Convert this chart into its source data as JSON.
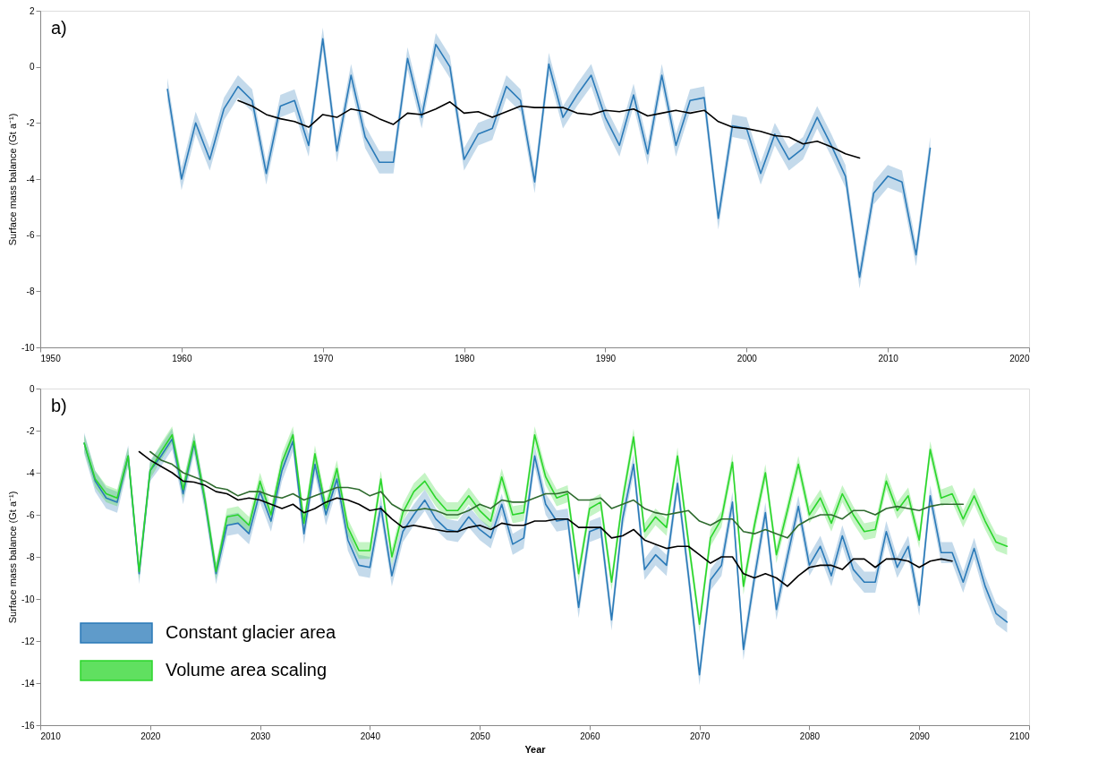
{
  "chart_data": [
    {
      "type": "line",
      "ylabel": "Surface mass balance (Gt a⁻¹)",
      "annotations": [
        "a)"
      ],
      "xlim": [
        1950,
        2020
      ],
      "xticks": [
        1950,
        1960,
        1970,
        1980,
        1990,
        2000,
        2010,
        2020
      ],
      "ylim": [
        -10,
        2
      ],
      "yticks": [
        -10,
        -8,
        -6,
        -4,
        -2,
        0,
        2
      ],
      "grid": false,
      "legend": false,
      "line_style": "solid",
      "series": [
        {
          "color": "#2a7ab8",
          "x": [
            1959,
            1960,
            1961,
            1962,
            1963,
            1964,
            1965,
            1966,
            1967,
            1968,
            1969,
            1970,
            1971,
            1972,
            1973,
            1974,
            1975,
            1976,
            1977,
            1978,
            1979,
            1980,
            1981,
            1982,
            1983,
            1984,
            1985,
            1986,
            1987,
            1988,
            1989,
            1990,
            1991,
            1992,
            1993,
            1994,
            1995,
            1996,
            1997,
            1998,
            1999,
            2000,
            2001,
            2002,
            2003,
            2004,
            2005,
            2006,
            2007,
            2008,
            2009,
            2010,
            2011,
            2012,
            2013
          ],
          "values": [
            -0.8,
            -4.0,
            -2.0,
            -3.3,
            -1.5,
            -0.7,
            -1.2,
            -3.8,
            -1.4,
            -1.2,
            -2.8,
            1.0,
            -3.0,
            -0.3,
            -2.5,
            -3.4,
            -3.4,
            0.3,
            -1.8,
            0.8,
            0.0,
            -3.3,
            -2.4,
            -2.2,
            -0.7,
            -1.2,
            -4.1,
            0.1,
            -1.8,
            -1.0,
            -0.3,
            -1.8,
            -2.8,
            -1.0,
            -3.1,
            -0.3,
            -2.8,
            -1.2,
            -1.1,
            -5.4,
            -2.1,
            -2.2,
            -3.8,
            -2.4,
            -3.3,
            -2.9,
            -1.8,
            -2.8,
            -3.9,
            -7.5,
            -4.5,
            -3.9,
            -4.1,
            -6.7,
            -2.9
          ],
          "lower": [
            -1.2,
            -4.4,
            -2.4,
            -3.7,
            -1.9,
            -1.1,
            -1.6,
            -4.2,
            -1.8,
            -1.6,
            -3.2,
            0.6,
            -3.4,
            -0.7,
            -2.9,
            -3.8,
            -3.8,
            -0.1,
            -2.2,
            0.4,
            -0.4,
            -3.7,
            -2.8,
            -2.6,
            -1.1,
            -1.6,
            -4.5,
            -0.3,
            -2.2,
            -1.4,
            -0.7,
            -2.2,
            -3.2,
            -1.4,
            -3.5,
            -0.7,
            -3.2,
            -1.6,
            -1.5,
            -5.8,
            -2.5,
            -2.6,
            -4.2,
            -2.8,
            -3.7,
            -3.3,
            -2.2,
            -3.2,
            -4.3,
            -7.9,
            -4.9,
            -4.3,
            -4.5,
            -7.1,
            -3.3
          ],
          "upper": [
            -0.4,
            -3.6,
            -1.6,
            -2.9,
            -1.1,
            -0.3,
            -0.8,
            -3.4,
            -1.0,
            -0.8,
            -2.4,
            1.4,
            -2.6,
            0.1,
            -2.1,
            -3.0,
            -3.0,
            0.7,
            -1.4,
            1.2,
            0.4,
            -2.9,
            -2.0,
            -1.8,
            -0.3,
            -0.8,
            -3.7,
            0.5,
            -1.4,
            -0.6,
            0.1,
            -1.4,
            -2.4,
            -0.6,
            -2.7,
            0.1,
            -2.4,
            -0.8,
            -0.7,
            -5.0,
            -1.7,
            -1.8,
            -3.4,
            -2.0,
            -2.9,
            -2.5,
            -1.4,
            -2.4,
            -3.5,
            -7.1,
            -4.1,
            -3.5,
            -3.7,
            -6.3,
            -2.5
          ]
        },
        {
          "color": "#000000",
          "x": [
            1964,
            1965,
            1966,
            1967,
            1968,
            1969,
            1970,
            1971,
            1972,
            1973,
            1974,
            1975,
            1976,
            1977,
            1978,
            1979,
            1980,
            1981,
            1982,
            1983,
            1984,
            1985,
            1986,
            1987,
            1988,
            1989,
            1990,
            1991,
            1992,
            1993,
            1994,
            1995,
            1996,
            1997,
            1998,
            1999,
            2000,
            2001,
            2002,
            2003,
            2004,
            2005,
            2006,
            2007,
            2008
          ],
          "values": [
            -1.2,
            -1.4,
            -1.7,
            -1.85,
            -1.95,
            -2.15,
            -1.7,
            -1.8,
            -1.5,
            -1.6,
            -1.85,
            -2.05,
            -1.65,
            -1.7,
            -1.5,
            -1.25,
            -1.65,
            -1.6,
            -1.8,
            -1.6,
            -1.4,
            -1.45,
            -1.45,
            -1.45,
            -1.65,
            -1.7,
            -1.55,
            -1.6,
            -1.5,
            -1.75,
            -1.65,
            -1.55,
            -1.65,
            -1.55,
            -1.95,
            -2.15,
            -2.2,
            -2.3,
            -2.45,
            -2.5,
            -2.75,
            -2.65,
            -2.85,
            -3.1,
            -3.25
          ]
        }
      ]
    },
    {
      "type": "line",
      "xlabel": "Year",
      "ylabel": "Surface mass balance (Gt a⁻¹)",
      "annotations": [
        "b)"
      ],
      "xlim": [
        2010,
        2100
      ],
      "xticks": [
        2010,
        2020,
        2030,
        2040,
        2050,
        2060,
        2070,
        2080,
        2090,
        2100
      ],
      "ylim": [
        -16,
        0
      ],
      "yticks": [
        -16,
        -14,
        -12,
        -10,
        -8,
        -6,
        -4,
        -2,
        0
      ],
      "grid": false,
      "legend": "bottom left",
      "line_style": "solid",
      "series": [
        {
          "name": "Constant glacier area",
          "color": "#2a7ab8",
          "x": [
            2014,
            2015,
            2016,
            2017,
            2018,
            2019,
            2020,
            2021,
            2022,
            2023,
            2024,
            2025,
            2026,
            2027,
            2028,
            2029,
            2030,
            2031,
            2032,
            2033,
            2034,
            2035,
            2036,
            2037,
            2038,
            2039,
            2040,
            2041,
            2042,
            2043,
            2044,
            2045,
            2046,
            2047,
            2048,
            2049,
            2050,
            2051,
            2052,
            2053,
            2054,
            2055,
            2056,
            2057,
            2058,
            2059,
            2060,
            2061,
            2062,
            2063,
            2064,
            2065,
            2066,
            2067,
            2068,
            2069,
            2070,
            2071,
            2072,
            2073,
            2074,
            2075,
            2076,
            2077,
            2078,
            2079,
            2080,
            2081,
            2082,
            2083,
            2084,
            2085,
            2086,
            2087,
            2088,
            2089,
            2090,
            2091,
            2092,
            2093,
            2094,
            2095,
            2096,
            2097,
            2098
          ],
          "values": [
            -2.6,
            -4.4,
            -5.2,
            -5.4,
            -3.2,
            -8.8,
            -3.9,
            -3.2,
            -2.4,
            -5.0,
            -2.6,
            -5.4,
            -8.8,
            -6.5,
            -6.4,
            -6.9,
            -4.9,
            -6.3,
            -3.9,
            -2.5,
            -6.9,
            -3.6,
            -6.0,
            -4.3,
            -7.2,
            -8.4,
            -8.5,
            -5.6,
            -8.9,
            -6.8,
            -6.0,
            -5.3,
            -6.2,
            -6.7,
            -6.8,
            -6.1,
            -6.7,
            -7.1,
            -5.5,
            -7.4,
            -7.1,
            -3.2,
            -5.5,
            -6.3,
            -6.2,
            -10.4,
            -6.8,
            -6.6,
            -11.0,
            -6.2,
            -3.6,
            -8.6,
            -7.9,
            -8.4,
            -4.5,
            -8.9,
            -13.6,
            -9.1,
            -8.4,
            -5.4,
            -12.4,
            -9.0,
            -5.9,
            -10.5,
            -8.0,
            -5.6,
            -8.4,
            -7.5,
            -8.9,
            -7.0,
            -8.6,
            -9.2,
            -9.2,
            -6.8,
            -8.5,
            -7.5,
            -10.3,
            -5.1,
            -7.8,
            -7.8,
            -9.2,
            -7.6,
            -9.4,
            -10.7,
            -11.1
          ],
          "lower": [
            -3.1,
            -4.9,
            -5.7,
            -5.9,
            -3.7,
            -9.3,
            -4.4,
            -3.7,
            -2.9,
            -5.5,
            -3.1,
            -5.9,
            -9.3,
            -7.0,
            -6.9,
            -7.4,
            -5.4,
            -6.8,
            -4.4,
            -3.0,
            -7.4,
            -4.1,
            -6.5,
            -4.8,
            -7.7,
            -8.9,
            -9.0,
            -6.1,
            -9.4,
            -7.3,
            -6.5,
            -5.8,
            -6.7,
            -7.2,
            -7.3,
            -6.6,
            -7.2,
            -7.6,
            -6.0,
            -7.9,
            -7.6,
            -3.7,
            -6.0,
            -6.8,
            -6.7,
            -10.9,
            -7.3,
            -7.1,
            -11.5,
            -6.7,
            -4.1,
            -9.1,
            -8.4,
            -8.9,
            -5.0,
            -9.4,
            -14.1,
            -9.6,
            -8.9,
            -5.9,
            -12.9,
            -9.5,
            -6.4,
            -11.0,
            -8.5,
            -6.1,
            -8.9,
            -8.0,
            -9.4,
            -7.5,
            -9.1,
            -9.7,
            -9.7,
            -7.3,
            -9.0,
            -8.0,
            -10.8,
            -5.6,
            -8.3,
            -8.3,
            -9.7,
            -8.1,
            -9.9,
            -11.2,
            -11.6
          ],
          "upper": [
            -2.1,
            -3.9,
            -4.7,
            -4.9,
            -2.7,
            -8.3,
            -3.4,
            -2.7,
            -1.9,
            -4.5,
            -2.1,
            -4.9,
            -8.3,
            -6.0,
            -5.9,
            -6.4,
            -4.4,
            -5.8,
            -3.4,
            -2.0,
            -6.4,
            -3.1,
            -5.5,
            -3.8,
            -6.7,
            -7.9,
            -8.0,
            -5.1,
            -8.4,
            -6.3,
            -5.5,
            -4.8,
            -5.7,
            -6.2,
            -6.3,
            -5.6,
            -6.2,
            -6.6,
            -5.0,
            -6.9,
            -6.6,
            -2.7,
            -5.0,
            -5.8,
            -5.7,
            -9.9,
            -6.3,
            -6.1,
            -10.5,
            -5.7,
            -3.1,
            -8.1,
            -7.4,
            -7.9,
            -4.0,
            -8.4,
            -13.1,
            -8.6,
            -7.9,
            -4.9,
            -11.9,
            -8.5,
            -5.4,
            -10.0,
            -7.5,
            -5.1,
            -7.9,
            -7.0,
            -8.4,
            -6.5,
            -8.1,
            -8.7,
            -8.7,
            -6.3,
            -8.0,
            -7.0,
            -9.8,
            -4.6,
            -7.3,
            -7.3,
            -8.7,
            -7.1,
            -8.9,
            -10.2,
            -10.6
          ]
        },
        {
          "name": "Volume area scaling",
          "color": "#2bd62b",
          "x": [
            2014,
            2015,
            2016,
            2017,
            2018,
            2019,
            2020,
            2021,
            2022,
            2023,
            2024,
            2025,
            2026,
            2027,
            2028,
            2029,
            2030,
            2031,
            2032,
            2033,
            2034,
            2035,
            2036,
            2037,
            2038,
            2039,
            2040,
            2041,
            2042,
            2043,
            2044,
            2045,
            2046,
            2047,
            2048,
            2049,
            2050,
            2051,
            2052,
            2053,
            2054,
            2055,
            2056,
            2057,
            2058,
            2059,
            2060,
            2061,
            2062,
            2063,
            2064,
            2065,
            2066,
            2067,
            2068,
            2069,
            2070,
            2071,
            2072,
            2073,
            2074,
            2075,
            2076,
            2077,
            2078,
            2079,
            2080,
            2081,
            2082,
            2083,
            2084,
            2085,
            2086,
            2087,
            2088,
            2089,
            2090,
            2091,
            2092,
            2093,
            2094,
            2095,
            2096,
            2097,
            2098
          ],
          "values": [
            -2.6,
            -4.3,
            -5.0,
            -5.2,
            -3.2,
            -8.7,
            -3.9,
            -3.0,
            -2.2,
            -4.8,
            -2.5,
            -5.3,
            -8.7,
            -6.1,
            -6.0,
            -6.5,
            -4.4,
            -6.0,
            -3.5,
            -2.2,
            -6.4,
            -3.1,
            -5.7,
            -3.8,
            -6.6,
            -7.7,
            -7.7,
            -4.3,
            -8.0,
            -5.9,
            -4.9,
            -4.4,
            -5.2,
            -5.8,
            -5.8,
            -5.1,
            -5.8,
            -6.3,
            -4.2,
            -6.0,
            -5.9,
            -2.2,
            -4.2,
            -5.2,
            -5.0,
            -8.8,
            -5.7,
            -5.4,
            -9.2,
            -5.3,
            -2.3,
            -6.8,
            -6.1,
            -6.6,
            -3.2,
            -7.3,
            -11.2,
            -7.1,
            -6.2,
            -3.5,
            -9.4,
            -6.5,
            -4.0,
            -7.9,
            -5.8,
            -3.6,
            -6.0,
            -5.2,
            -6.4,
            -5.0,
            -6.0,
            -6.8,
            -6.7,
            -4.4,
            -5.8,
            -5.1,
            -7.2,
            -2.9,
            -5.2,
            -5.0,
            -6.2,
            -5.1,
            -6.3,
            -7.3,
            -7.5
          ],
          "lower": [
            -3.0,
            -4.7,
            -5.4,
            -5.6,
            -3.6,
            -9.1,
            -4.3,
            -3.4,
            -2.6,
            -5.2,
            -2.9,
            -5.7,
            -9.1,
            -6.5,
            -6.4,
            -6.9,
            -4.8,
            -6.4,
            -3.9,
            -2.6,
            -6.8,
            -3.5,
            -6.1,
            -4.2,
            -7.0,
            -8.1,
            -8.1,
            -4.7,
            -8.4,
            -6.3,
            -5.3,
            -4.8,
            -5.6,
            -6.2,
            -6.2,
            -5.5,
            -6.2,
            -6.7,
            -4.6,
            -6.4,
            -6.3,
            -2.6,
            -4.6,
            -5.6,
            -5.4,
            -9.2,
            -6.1,
            -5.8,
            -9.6,
            -5.7,
            -2.7,
            -7.2,
            -6.5,
            -7.0,
            -3.6,
            -7.7,
            -11.6,
            -7.5,
            -6.6,
            -3.9,
            -9.8,
            -6.9,
            -4.4,
            -8.3,
            -6.2,
            -4.0,
            -6.4,
            -5.6,
            -6.8,
            -5.4,
            -6.4,
            -7.2,
            -7.1,
            -4.8,
            -6.2,
            -5.5,
            -7.6,
            -3.3,
            -5.6,
            -5.4,
            -6.6,
            -5.5,
            -6.7,
            -7.7,
            -7.9
          ],
          "upper": [
            -2.2,
            -3.9,
            -4.6,
            -4.8,
            -2.8,
            -8.3,
            -3.5,
            -2.6,
            -1.8,
            -4.4,
            -2.1,
            -4.9,
            -8.3,
            -5.7,
            -5.6,
            -6.1,
            -4.0,
            -5.6,
            -3.1,
            -1.8,
            -6.0,
            -2.7,
            -5.3,
            -3.4,
            -6.2,
            -7.3,
            -7.3,
            -3.9,
            -7.6,
            -5.5,
            -4.5,
            -4.0,
            -4.8,
            -5.4,
            -5.4,
            -4.7,
            -5.4,
            -5.9,
            -3.8,
            -5.6,
            -5.5,
            -1.8,
            -3.8,
            -4.8,
            -4.6,
            -8.4,
            -5.3,
            -5.0,
            -8.8,
            -4.9,
            -1.9,
            -6.4,
            -5.7,
            -6.2,
            -2.8,
            -6.9,
            -10.8,
            -6.7,
            -5.8,
            -3.1,
            -9.0,
            -6.1,
            -3.6,
            -7.5,
            -5.4,
            -3.2,
            -5.6,
            -4.8,
            -6.0,
            -4.6,
            -5.6,
            -6.4,
            -6.3,
            -4.0,
            -5.4,
            -4.7,
            -6.8,
            -2.5,
            -4.8,
            -4.6,
            -5.8,
            -4.7,
            -5.9,
            -6.9,
            -7.1
          ]
        },
        {
          "color": "#2f6b2f",
          "x": [
            2020,
            2021,
            2022,
            2023,
            2024,
            2025,
            2026,
            2027,
            2028,
            2029,
            2030,
            2031,
            2032,
            2033,
            2034,
            2035,
            2036,
            2037,
            2038,
            2039,
            2040,
            2041,
            2042,
            2043,
            2044,
            2045,
            2046,
            2047,
            2048,
            2049,
            2050,
            2051,
            2052,
            2053,
            2054,
            2055,
            2056,
            2057,
            2058,
            2059,
            2060,
            2061,
            2062,
            2063,
            2064,
            2065,
            2066,
            2067,
            2068,
            2069,
            2070,
            2071,
            2072,
            2073,
            2074,
            2075,
            2076,
            2077,
            2078,
            2079,
            2080,
            2081,
            2082,
            2083,
            2084,
            2085,
            2086,
            2087,
            2088,
            2089,
            2090,
            2091,
            2092,
            2093,
            2094
          ],
          "values": [
            -3.0,
            -3.4,
            -3.6,
            -4.0,
            -4.2,
            -4.4,
            -4.7,
            -4.8,
            -5.1,
            -4.9,
            -4.9,
            -5.1,
            -5.2,
            -5.0,
            -5.3,
            -5.1,
            -4.9,
            -4.7,
            -4.7,
            -4.8,
            -5.1,
            -4.9,
            -5.5,
            -5.8,
            -5.8,
            -5.7,
            -5.8,
            -6.0,
            -6.0,
            -5.8,
            -5.5,
            -5.7,
            -5.3,
            -5.4,
            -5.4,
            -5.2,
            -5.0,
            -5.0,
            -4.9,
            -5.3,
            -5.3,
            -5.2,
            -5.7,
            -5.5,
            -5.3,
            -5.7,
            -5.9,
            -6.0,
            -5.9,
            -5.8,
            -6.3,
            -6.5,
            -6.2,
            -6.2,
            -6.8,
            -6.9,
            -6.7,
            -6.9,
            -7.1,
            -6.5,
            -6.2,
            -6.0,
            -6.0,
            -6.2,
            -5.8,
            -5.8,
            -6.0,
            -5.7,
            -5.6,
            -5.7,
            -5.8,
            -5.6,
            -5.5,
            -5.5,
            -5.5
          ]
        },
        {
          "color": "#000000",
          "x": [
            2019,
            2020,
            2021,
            2022,
            2023,
            2024,
            2025,
            2026,
            2027,
            2028,
            2029,
            2030,
            2031,
            2032,
            2033,
            2034,
            2035,
            2036,
            2037,
            2038,
            2039,
            2040,
            2041,
            2042,
            2043,
            2044,
            2045,
            2046,
            2047,
            2048,
            2049,
            2050,
            2051,
            2052,
            2053,
            2054,
            2055,
            2056,
            2057,
            2058,
            2059,
            2060,
            2061,
            2062,
            2063,
            2064,
            2065,
            2066,
            2067,
            2068,
            2069,
            2070,
            2071,
            2072,
            2073,
            2074,
            2075,
            2076,
            2077,
            2078,
            2079,
            2080,
            2081,
            2082,
            2083,
            2084,
            2085,
            2086,
            2087,
            2088,
            2089,
            2090,
            2091,
            2092,
            2093
          ],
          "values": [
            -3.0,
            -3.4,
            -3.7,
            -4.0,
            -4.4,
            -4.45,
            -4.6,
            -4.9,
            -5.0,
            -5.3,
            -5.2,
            -5.3,
            -5.5,
            -5.7,
            -5.5,
            -5.9,
            -5.7,
            -5.4,
            -5.2,
            -5.3,
            -5.5,
            -5.8,
            -5.7,
            -6.2,
            -6.6,
            -6.5,
            -6.6,
            -6.7,
            -6.8,
            -6.8,
            -6.6,
            -6.5,
            -6.7,
            -6.4,
            -6.5,
            -6.5,
            -6.3,
            -6.3,
            -6.2,
            -6.2,
            -6.6,
            -6.6,
            -6.6,
            -7.1,
            -7.0,
            -6.7,
            -7.2,
            -7.4,
            -7.6,
            -7.5,
            -7.5,
            -7.9,
            -8.3,
            -8.0,
            -8.0,
            -8.8,
            -9.0,
            -8.8,
            -9.0,
            -9.4,
            -8.9,
            -8.5,
            -8.4,
            -8.4,
            -8.6,
            -8.1,
            -8.1,
            -8.5,
            -8.1,
            -8.1,
            -8.2,
            -8.5,
            -8.2,
            -8.1,
            -8.2
          ]
        }
      ]
    }
  ]
}
